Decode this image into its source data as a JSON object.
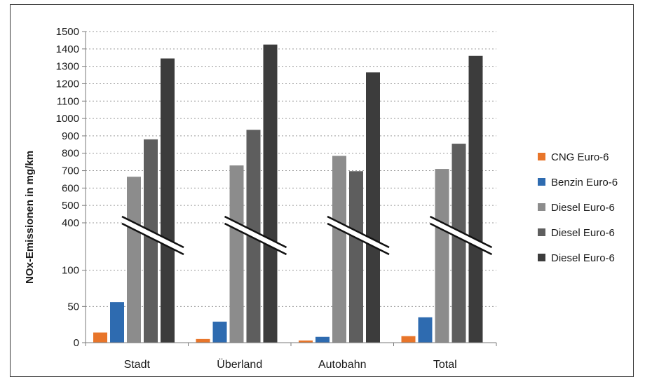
{
  "chart_data": {
    "type": "bar",
    "title": "",
    "ylabel": "NOx-Emissionen in mg/km",
    "xlabel": "",
    "categories": [
      "Stadt",
      "Überland",
      "Autobahn",
      "Total"
    ],
    "broken_axis": {
      "lower_ticks": [
        0,
        50,
        100
      ],
      "upper_ticks": [
        400,
        500,
        600,
        700,
        800,
        900,
        1000,
        1100,
        1200,
        1300,
        1400,
        1500
      ],
      "lower_range": [
        0,
        150
      ],
      "upper_range": [
        400,
        1500
      ]
    },
    "grid": true,
    "legend_position": "right",
    "series": [
      {
        "name": "CNG Euro-6",
        "color": "#e8752a",
        "values": [
          14,
          5,
          3,
          9
        ]
      },
      {
        "name": "Benzin Euro-6",
        "color": "#2e6bb0",
        "values": [
          56,
          29,
          8,
          35
        ]
      },
      {
        "name": "Diesel Euro-6",
        "color": "#8c8c8c",
        "values": [
          665,
          730,
          785,
          710
        ]
      },
      {
        "name": "Diesel Euro-6",
        "color": "#5e5e5e",
        "values": [
          880,
          935,
          697,
          855
        ]
      },
      {
        "name": "Diesel Euro-6",
        "color": "#3c3c3c",
        "values": [
          1345,
          1425,
          1265,
          1360
        ]
      }
    ]
  }
}
